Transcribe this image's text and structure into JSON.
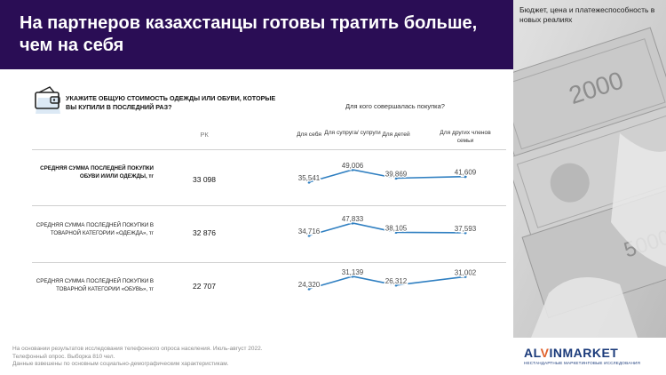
{
  "header": {
    "title": "На партнеров казахстанцы готовы тратить больше, чем на себя"
  },
  "side_note": "Бюджет, цена и платежеспособность в новых реалиях",
  "question": "УКАЖИТЕ ОБЩУЮ СТОИМОСТЬ ОДЕЖДЫ ИЛИ ОБУВИ, КОТОРЫЕ ВЫ КУПИЛИ В ПОСЛЕДНИЙ РАЗ?",
  "icons": {
    "question": "wallet-cards-icon",
    "photo": "banknotes-hand-photo"
  },
  "colors": {
    "header_bg": "#2a0d55",
    "line": "#2f7fc1"
  },
  "chart_data": {
    "type": "line",
    "group_label": "Для кого совершалась покупка?",
    "rk_label": "РК",
    "categories": [
      "Для себя",
      "Для супруга/ супруги",
      "Для детей",
      "Для других членов семьи"
    ],
    "rows": [
      {
        "label": "СРЕДНЯЯ СУММА ПОСЛЕДНЕЙ ПОКУПКИ ОБУВИ И/ИЛИ ОДЕЖДЫ, тг",
        "rk": "33 098",
        "values": [
          35541,
          49006,
          39869,
          41609
        ],
        "labels": [
          "35,541",
          "49,006",
          "39,869",
          "41,609"
        ]
      },
      {
        "label": "СРЕДНЯЯ СУММА ПОСЛЕДНЕЙ ПОКУПКИ В ТОВАРНОЙ КАТЕГОРИИ «ОДЕЖДА», тг",
        "rk": "32 876",
        "values": [
          34716,
          47833,
          38105,
          37593
        ],
        "labels": [
          "34,716",
          "47,833",
          "38,105",
          "37,593"
        ]
      },
      {
        "label": "СРЕДНЯЯ СУММА ПОСЛЕДНЕЙ ПОКУПКИ В ТОВАРНОЙ КАТЕГОРИИ «ОБУВЬ», тг",
        "rk": "22 707",
        "values": [
          24320,
          31139,
          26312,
          31002
        ],
        "labels": [
          "24,320",
          "31,139",
          "26,312",
          "31,002"
        ]
      }
    ]
  },
  "footnote": {
    "line1": "На основании результатов исследования телефонного опроса населения. Июль-август 2022.",
    "line2": "Телефонный опрос. Выборка 810 чел.",
    "line3": "Данные взвешены по основным социально-демографическим характеристикам."
  },
  "logo": {
    "part1": "AL",
    "part2": "V",
    "part3": "INMARKET",
    "tagline": "НЕСТАНДАРТНЫЕ МАРКЕТИНГОВЫЕ ИССЛЕДОВАНИЯ"
  }
}
